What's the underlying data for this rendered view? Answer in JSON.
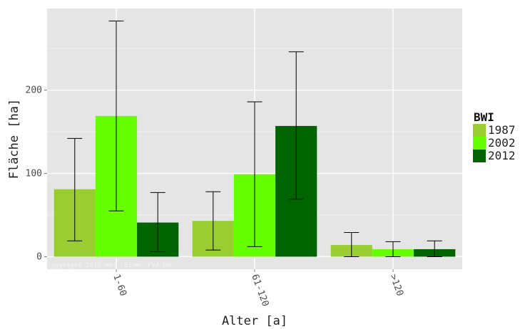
{
  "chart_data": {
    "type": "bar",
    "xlabel": "Alter [a]",
    "ylabel": "Fläche [ha]",
    "categories": [
      "1-60",
      "61-120",
      ">120"
    ],
    "ylim": [
      -15,
      298
    ],
    "y_ticks": [
      0,
      100,
      200
    ],
    "legend": {
      "title": "BWI",
      "position": "right"
    },
    "series": [
      {
        "name": "1987",
        "color": "#9acd32",
        "values": [
          81,
          43,
          14
        ],
        "error_low": [
          19,
          8,
          0
        ],
        "error_high": [
          142,
          78,
          29
        ]
      },
      {
        "name": "2002",
        "color": "#66ff00",
        "values": [
          169,
          99,
          9
        ],
        "error_low": [
          55,
          12,
          0
        ],
        "error_high": [
          283,
          186,
          18
        ]
      },
      {
        "name": "2012",
        "color": "#006400",
        "values": [
          41,
          157,
          9
        ],
        "error_low": [
          6,
          69,
          0
        ],
        "error_high": [
          77,
          246,
          19
        ]
      }
    ],
    "annotation": "Copyright 2015 Abt. Biom. FVA BW"
  }
}
